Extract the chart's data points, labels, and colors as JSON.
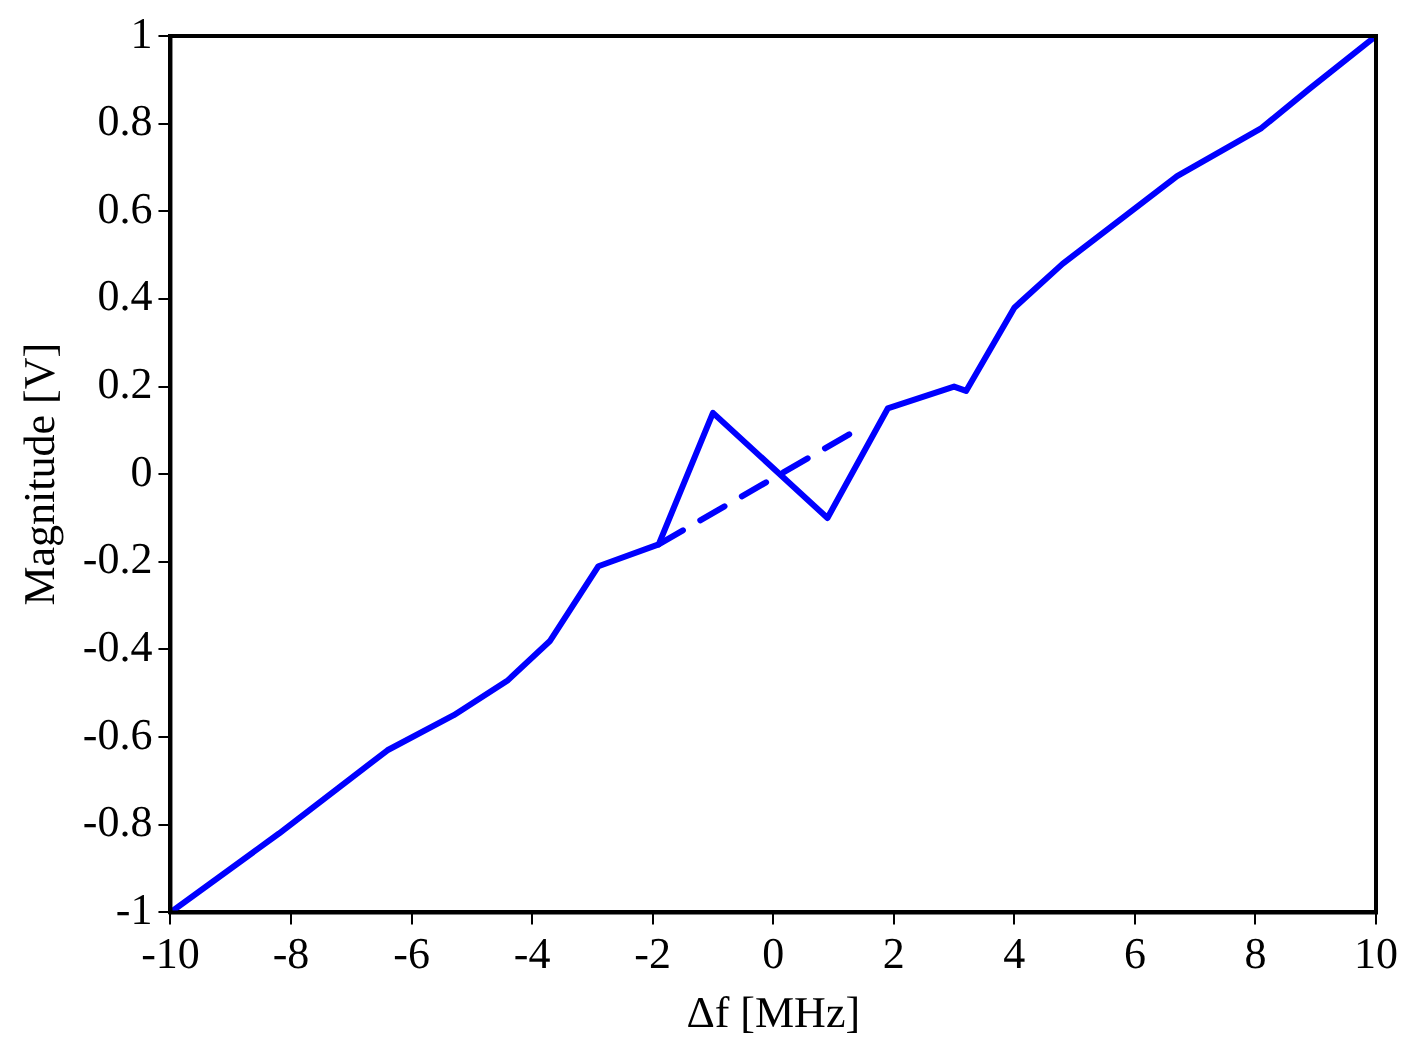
{
  "chart_data": {
    "type": "line",
    "xlabel": "Δf [MHz]",
    "ylabel": "Magnitude [V]",
    "xlim": [
      -10,
      10
    ],
    "xticks": [
      -10,
      -8,
      -6,
      -4,
      -2,
      0,
      2,
      4,
      6,
      8,
      10
    ],
    "ylim": [
      -1,
      1
    ],
    "yticks": [
      -1,
      -0.8,
      -0.6,
      -0.4,
      -0.2,
      0,
      0.2,
      0.4,
      0.6,
      0.8,
      1
    ],
    "grid": false,
    "legend": false,
    "marker": "none",
    "series": [
      {
        "color": "#0000ff",
        "line_style": "solid",
        "x": [
          -10,
          -8.2,
          -6.4,
          -5.3,
          -4.4,
          -3.7,
          -2.9,
          -1.9,
          -1.0,
          0.9,
          1.9,
          3.0,
          3.2,
          4.0,
          4.8,
          6.7,
          8.1,
          8.9,
          10
        ],
        "values": [
          -1,
          -0.82,
          -0.63,
          -0.55,
          -0.47,
          -0.38,
          -0.21,
          -0.16,
          0.14,
          -0.1,
          0.15,
          0.2,
          0.19,
          0.38,
          0.48,
          0.68,
          0.79,
          0.88,
          1
        ]
      },
      {
        "color": "#0000ff",
        "line_style": "dashed",
        "x": [
          -1.9,
          1.5
        ],
        "values": [
          -0.16,
          0.11
        ]
      }
    ]
  }
}
